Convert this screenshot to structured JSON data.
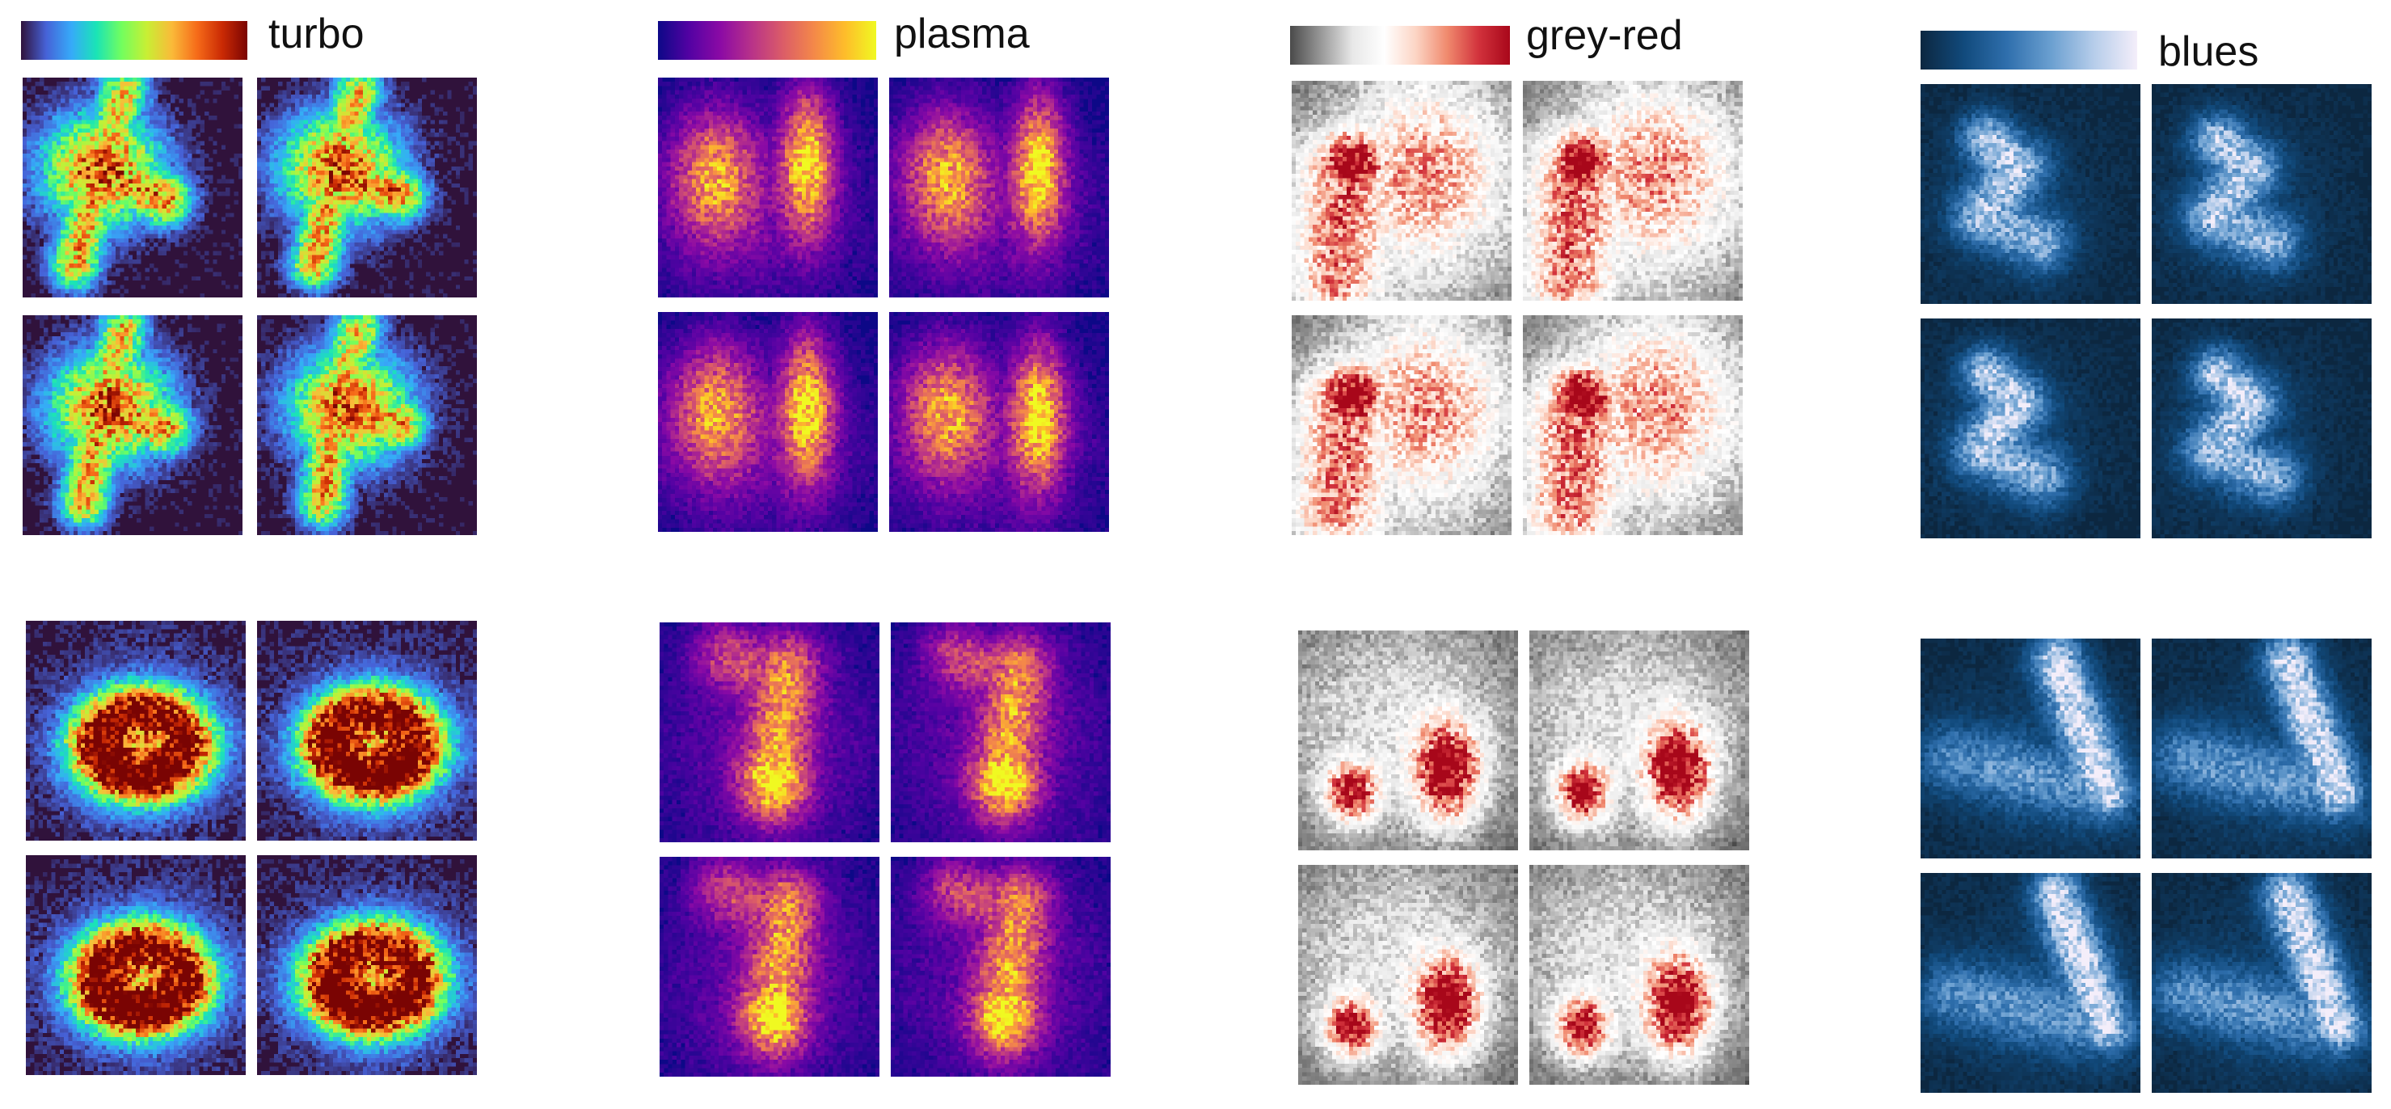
{
  "colormaps": [
    {
      "name": "turbo",
      "colors": [
        "#30123b",
        "#4662d7",
        "#36aaf9",
        "#1ae4b6",
        "#72fe5e",
        "#c8ef34",
        "#faba39",
        "#f66b19",
        "#ca2a04",
        "#7a0403"
      ]
    },
    {
      "name": "plasma",
      "colors": [
        "#0d0887",
        "#5302a3",
        "#8b0aa5",
        "#b83289",
        "#db5c68",
        "#f48849",
        "#febd2a",
        "#f0f921"
      ]
    },
    {
      "name": "grey-red",
      "colors": [
        "#4a4a4a",
        "#9a9a9a",
        "#e8e8e8",
        "#ffffff",
        "#fcd5c5",
        "#f08a6e",
        "#d2323c",
        "#a8071a"
      ]
    },
    {
      "name": "blues",
      "colors": [
        "#0c2740",
        "#114a7c",
        "#2f6fad",
        "#6a9fd0",
        "#b6cdea",
        "#f4eefa"
      ]
    }
  ],
  "groups": [
    {
      "colormap": "turbo",
      "shape": "tri"
    },
    {
      "colormap": "turbo",
      "shape": "ring"
    },
    {
      "colormap": "plasma",
      "shape": "twin"
    },
    {
      "colormap": "plasma",
      "shape": "snake"
    },
    {
      "colormap": "grey-red",
      "shape": "hook"
    },
    {
      "colormap": "grey-red",
      "shape": "pair"
    },
    {
      "colormap": "blues",
      "shape": "zed"
    },
    {
      "colormap": "blues",
      "shape": "vee"
    }
  ]
}
